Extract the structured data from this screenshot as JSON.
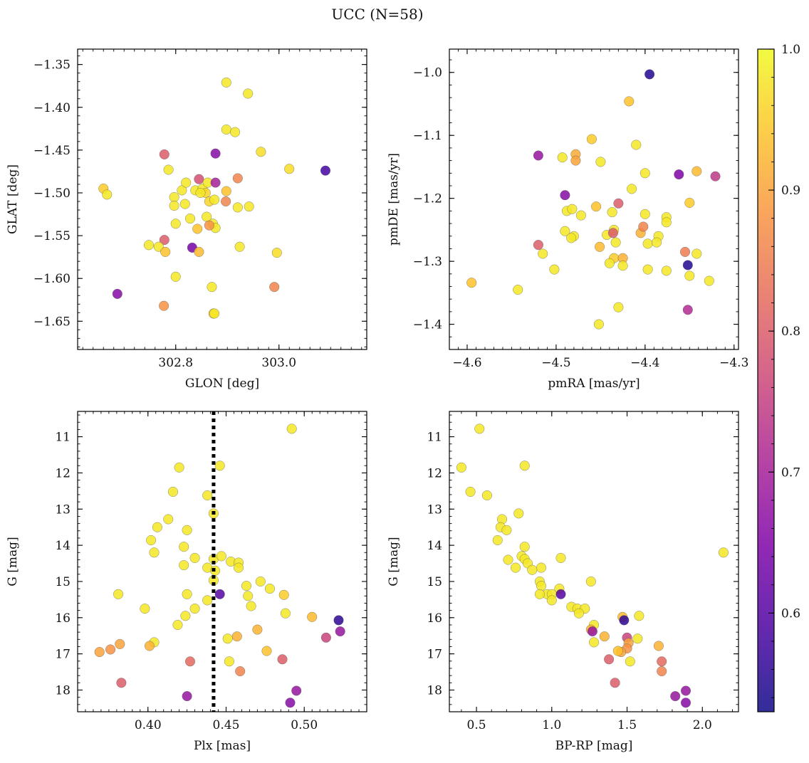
{
  "figure": {
    "title": "UCC (N=58)"
  },
  "colorbar": {
    "min": 0.53,
    "max": 1.0,
    "ticks": [
      0.6,
      0.7,
      0.8,
      0.9,
      1.0
    ],
    "tick_labels": [
      "0.6",
      "0.7",
      "0.8",
      "0.9",
      "1.0"
    ],
    "colormap": "plasma"
  },
  "chart_data": [
    {
      "type": "scatter",
      "xlabel": "GLON [deg]",
      "ylabel": "GLAT [deg]",
      "xlim": [
        302.61,
        303.17
      ],
      "ylim": [
        -1.683,
        -1.332
      ],
      "x_ticks": [
        302.8,
        303.0
      ],
      "x_tick_labels": [
        "302.8",
        "303.0"
      ],
      "y_ticks": [
        -1.35,
        -1.4,
        -1.45,
        -1.5,
        -1.55,
        -1.6,
        -1.65
      ],
      "y_tick_labels": [
        "−1.35",
        "−1.40",
        "−1.45",
        "−1.50",
        "−1.55",
        "−1.60",
        "−1.65"
      ],
      "points": [
        [
          302.898,
          -1.371,
          0.98
        ],
        [
          302.94,
          -1.384,
          0.98
        ],
        [
          302.898,
          -1.426,
          0.98
        ],
        [
          302.915,
          -1.429,
          0.98
        ],
        [
          302.965,
          -1.452,
          0.97
        ],
        [
          303.02,
          -1.472,
          0.97
        ],
        [
          303.09,
          -1.474,
          0.58
        ],
        [
          302.877,
          -1.454,
          0.66
        ],
        [
          302.778,
          -1.455,
          0.8
        ],
        [
          302.786,
          -1.473,
          0.98
        ],
        [
          302.66,
          -1.495,
          0.95
        ],
        [
          302.667,
          -1.502,
          0.98
        ],
        [
          302.812,
          -1.497,
          0.98
        ],
        [
          302.82,
          -1.488,
          0.98
        ],
        [
          302.838,
          -1.497,
          0.98
        ],
        [
          302.845,
          -1.484,
          0.78
        ],
        [
          302.852,
          -1.495,
          0.98
        ],
        [
          302.858,
          -1.5,
          0.96
        ],
        [
          302.862,
          -1.488,
          0.98
        ],
        [
          302.877,
          -1.488,
          0.7
        ],
        [
          302.898,
          -1.498,
          0.94
        ],
        [
          302.92,
          -1.483,
          0.86
        ],
        [
          302.797,
          -1.505,
          0.98
        ],
        [
          302.797,
          -1.515,
          0.98
        ],
        [
          302.818,
          -1.513,
          0.98
        ],
        [
          302.848,
          -1.5,
          0.98
        ],
        [
          302.865,
          -1.51,
          0.96
        ],
        [
          302.875,
          -1.508,
          0.98
        ],
        [
          302.897,
          -1.51,
          0.86
        ],
        [
          302.92,
          -1.517,
          0.98
        ],
        [
          302.942,
          -1.516,
          0.98
        ],
        [
          302.828,
          -1.53,
          0.98
        ],
        [
          302.86,
          -1.528,
          0.98
        ],
        [
          302.872,
          -1.536,
          0.98
        ],
        [
          302.877,
          -1.541,
          0.98
        ],
        [
          302.865,
          -1.538,
          0.88
        ],
        [
          302.842,
          -1.542,
          0.94
        ],
        [
          302.8,
          -1.536,
          0.98
        ],
        [
          302.778,
          -1.555,
          0.8
        ],
        [
          302.748,
          -1.561,
          0.98
        ],
        [
          302.767,
          -1.563,
          0.98
        ],
        [
          302.78,
          -1.569,
          0.94
        ],
        [
          302.832,
          -1.564,
          0.64
        ],
        [
          302.845,
          -1.569,
          0.93
        ],
        [
          302.924,
          -1.563,
          0.98
        ],
        [
          302.996,
          -1.57,
          0.97
        ],
        [
          302.8,
          -1.598,
          0.98
        ],
        [
          302.687,
          -1.618,
          0.66
        ],
        [
          302.777,
          -1.632,
          0.88
        ],
        [
          302.87,
          -1.61,
          0.98
        ],
        [
          302.873,
          -1.641,
          0.95
        ],
        [
          302.875,
          -1.641,
          0.98
        ],
        [
          302.991,
          -1.61,
          0.86
        ]
      ]
    },
    {
      "type": "scatter",
      "xlabel": "pmRA [mas/yr]",
      "ylabel": "pmDE [mas/yr]",
      "xlim": [
        -4.62,
        -4.295
      ],
      "ylim": [
        -1.44,
        -0.963
      ],
      "x_ticks": [
        -4.6,
        -4.5,
        -4.4,
        -4.3
      ],
      "x_tick_labels": [
        "−4.6",
        "−4.5",
        "−4.4",
        "−4.3"
      ],
      "y_ticks": [
        -1.0,
        -1.1,
        -1.2,
        -1.3,
        -1.4
      ],
      "y_tick_labels": [
        "−1.0",
        "−1.1",
        "−1.2",
        "−1.3",
        "−1.4"
      ],
      "points": [
        [
          -4.395,
          -1.003,
          0.55
        ],
        [
          -4.418,
          -1.046,
          0.94
        ],
        [
          -4.46,
          -1.106,
          0.95
        ],
        [
          -4.41,
          -1.115,
          0.98
        ],
        [
          -4.52,
          -1.132,
          0.68
        ],
        [
          -4.493,
          -1.135,
          0.98
        ],
        [
          -4.478,
          -1.13,
          0.91
        ],
        [
          -4.478,
          -1.14,
          0.9
        ],
        [
          -4.45,
          -1.142,
          0.98
        ],
        [
          -4.4,
          -1.16,
          0.98
        ],
        [
          -4.362,
          -1.162,
          0.65
        ],
        [
          -4.342,
          -1.157,
          0.93
        ],
        [
          -4.321,
          -1.165,
          0.74
        ],
        [
          -4.49,
          -1.195,
          0.66
        ],
        [
          -4.415,
          -1.185,
          0.98
        ],
        [
          -4.35,
          -1.207,
          0.95
        ],
        [
          -4.43,
          -1.208,
          0.8
        ],
        [
          -4.455,
          -1.213,
          0.94
        ],
        [
          -4.488,
          -1.22,
          0.98
        ],
        [
          -4.482,
          -1.217,
          0.98
        ],
        [
          -4.472,
          -1.227,
          0.98
        ],
        [
          -4.437,
          -1.222,
          0.98
        ],
        [
          -4.4,
          -1.225,
          0.98
        ],
        [
          -4.376,
          -1.23,
          0.98
        ],
        [
          -4.376,
          -1.238,
          0.98
        ],
        [
          -4.49,
          -1.252,
          0.98
        ],
        [
          -4.48,
          -1.26,
          0.98
        ],
        [
          -4.483,
          -1.263,
          0.98
        ],
        [
          -4.443,
          -1.258,
          0.98
        ],
        [
          -4.435,
          -1.25,
          0.98
        ],
        [
          -4.436,
          -1.255,
          0.8
        ],
        [
          -4.405,
          -1.255,
          0.92
        ],
        [
          -4.402,
          -1.245,
          0.86
        ],
        [
          -4.385,
          -1.26,
          0.98
        ],
        [
          -4.397,
          -1.272,
          0.98
        ],
        [
          -4.387,
          -1.27,
          0.98
        ],
        [
          -4.433,
          -1.27,
          0.98
        ],
        [
          -4.451,
          -1.277,
          0.93
        ],
        [
          -4.52,
          -1.274,
          0.8
        ],
        [
          -4.515,
          -1.288,
          0.98
        ],
        [
          -4.355,
          -1.285,
          0.85
        ],
        [
          -4.342,
          -1.288,
          0.98
        ],
        [
          -4.435,
          -1.295,
          0.95
        ],
        [
          -4.425,
          -1.295,
          0.92
        ],
        [
          -4.44,
          -1.303,
          0.98
        ],
        [
          -4.425,
          -1.307,
          0.98
        ],
        [
          -4.502,
          -1.313,
          0.98
        ],
        [
          -4.397,
          -1.313,
          0.98
        ],
        [
          -4.376,
          -1.315,
          0.98
        ],
        [
          -4.352,
          -1.306,
          0.55
        ],
        [
          -4.35,
          -1.323,
          0.98
        ],
        [
          -4.328,
          -1.331,
          0.98
        ],
        [
          -4.595,
          -1.334,
          0.94
        ],
        [
          -4.543,
          -1.345,
          0.98
        ],
        [
          -4.43,
          -1.373,
          0.98
        ],
        [
          -4.352,
          -1.377,
          0.72
        ],
        [
          -4.452,
          -1.4,
          0.98
        ]
      ]
    },
    {
      "type": "scatter",
      "xlabel": "Plx [mas]",
      "ylabel": "G [mag]",
      "xlim": [
        0.355,
        0.54
      ],
      "ylim": [
        18.6,
        10.3
      ],
      "x_ticks": [
        0.4,
        0.45,
        0.5
      ],
      "x_tick_labels": [
        "0.40",
        "0.45",
        "0.50"
      ],
      "y_ticks": [
        11,
        12,
        13,
        14,
        15,
        16,
        17,
        18
      ],
      "y_tick_labels": [
        "11",
        "12",
        "13",
        "14",
        "15",
        "16",
        "17",
        "18"
      ],
      "vline": 0.442,
      "points": [
        [
          0.492,
          10.78,
          0.98
        ],
        [
          0.42,
          11.85,
          0.98
        ],
        [
          0.446,
          11.8,
          0.98
        ],
        [
          0.416,
          12.52,
          0.98
        ],
        [
          0.438,
          12.62,
          0.98
        ],
        [
          0.442,
          13.12,
          0.98
        ],
        [
          0.413,
          13.28,
          0.98
        ],
        [
          0.406,
          13.5,
          0.98
        ],
        [
          0.425,
          13.58,
          0.98
        ],
        [
          0.402,
          13.86,
          0.98
        ],
        [
          0.423,
          14.04,
          0.98
        ],
        [
          0.404,
          14.2,
          0.98
        ],
        [
          0.43,
          14.35,
          0.98
        ],
        [
          0.442,
          14.38,
          0.98
        ],
        [
          0.447,
          14.3,
          0.98
        ],
        [
          0.453,
          14.45,
          0.98
        ],
        [
          0.458,
          14.48,
          0.98
        ],
        [
          0.458,
          14.62,
          0.98
        ],
        [
          0.423,
          14.55,
          0.98
        ],
        [
          0.438,
          14.62,
          0.98
        ],
        [
          0.443,
          14.7,
          0.98
        ],
        [
          0.442,
          14.97,
          0.98
        ],
        [
          0.472,
          15.0,
          0.98
        ],
        [
          0.463,
          15.12,
          0.98
        ],
        [
          0.478,
          15.2,
          0.98
        ],
        [
          0.381,
          15.35,
          0.98
        ],
        [
          0.425,
          15.35,
          0.98
        ],
        [
          0.446,
          15.35,
          0.6
        ],
        [
          0.464,
          15.4,
          0.98
        ],
        [
          0.487,
          15.37,
          0.95
        ],
        [
          0.438,
          15.52,
          0.98
        ],
        [
          0.43,
          15.75,
          0.98
        ],
        [
          0.466,
          15.68,
          0.98
        ],
        [
          0.398,
          15.75,
          0.98
        ],
        [
          0.424,
          15.95,
          0.98
        ],
        [
          0.488,
          15.88,
          0.98
        ],
        [
          0.505,
          15.98,
          0.93
        ],
        [
          0.522,
          16.07,
          0.56
        ],
        [
          0.419,
          16.2,
          0.98
        ],
        [
          0.47,
          16.33,
          0.92
        ],
        [
          0.457,
          16.52,
          0.92
        ],
        [
          0.451,
          16.58,
          0.98
        ],
        [
          0.523,
          16.38,
          0.68
        ],
        [
          0.514,
          16.55,
          0.76
        ],
        [
          0.404,
          16.68,
          0.98
        ],
        [
          0.401,
          16.78,
          0.92
        ],
        [
          0.382,
          16.73,
          0.9
        ],
        [
          0.376,
          16.88,
          0.88
        ],
        [
          0.369,
          16.95,
          0.9
        ],
        [
          0.476,
          16.92,
          0.94
        ],
        [
          0.486,
          17.15,
          0.8
        ],
        [
          0.427,
          17.21,
          0.82
        ],
        [
          0.452,
          17.21,
          0.98
        ],
        [
          0.459,
          17.48,
          0.86
        ],
        [
          0.383,
          17.8,
          0.8
        ],
        [
          0.495,
          18.02,
          0.68
        ],
        [
          0.425,
          18.17,
          0.68
        ],
        [
          0.491,
          18.35,
          0.66
        ]
      ]
    },
    {
      "type": "scatter",
      "xlabel": "BP-RP [mag]",
      "ylabel": "G [mag]",
      "xlim": [
        0.32,
        2.24
      ],
      "ylim": [
        18.6,
        10.3
      ],
      "x_ticks": [
        0.5,
        1.0,
        1.5,
        2.0
      ],
      "x_tick_labels": [
        "0.5",
        "1.0",
        "1.5",
        "2.0"
      ],
      "y_ticks": [
        11,
        12,
        13,
        14,
        15,
        16,
        17,
        18
      ],
      "y_tick_labels": [
        "11",
        "12",
        "13",
        "14",
        "15",
        "16",
        "17",
        "18"
      ],
      "points": [
        [
          0.52,
          10.78,
          0.98
        ],
        [
          0.4,
          11.85,
          0.98
        ],
        [
          0.82,
          11.8,
          0.98
        ],
        [
          0.46,
          12.52,
          0.98
        ],
        [
          0.57,
          12.62,
          0.98
        ],
        [
          0.78,
          13.12,
          0.98
        ],
        [
          0.67,
          13.28,
          0.98
        ],
        [
          0.66,
          13.5,
          0.98
        ],
        [
          0.7,
          13.58,
          0.98
        ],
        [
          0.64,
          13.86,
          0.98
        ],
        [
          0.82,
          14.04,
          0.98
        ],
        [
          2.14,
          14.2,
          0.98
        ],
        [
          0.71,
          14.4,
          0.98
        ],
        [
          0.8,
          14.3,
          0.98
        ],
        [
          0.82,
          14.38,
          0.98
        ],
        [
          1.06,
          14.35,
          0.98
        ],
        [
          0.84,
          14.5,
          0.98
        ],
        [
          0.76,
          14.62,
          0.98
        ],
        [
          0.93,
          14.62,
          0.98
        ],
        [
          0.87,
          14.68,
          0.98
        ],
        [
          0.92,
          15.0,
          0.98
        ],
        [
          1.26,
          15.0,
          0.98
        ],
        [
          0.93,
          15.12,
          0.98
        ],
        [
          1.05,
          15.2,
          0.98
        ],
        [
          0.97,
          15.35,
          0.98
        ],
        [
          1.0,
          15.35,
          0.98
        ],
        [
          0.92,
          15.35,
          0.98
        ],
        [
          1.06,
          15.35,
          0.6
        ],
        [
          1.0,
          15.52,
          0.98
        ],
        [
          1.13,
          15.7,
          0.98
        ],
        [
          1.17,
          15.75,
          0.98
        ],
        [
          1.22,
          15.75,
          0.98
        ],
        [
          1.18,
          15.88,
          0.98
        ],
        [
          1.58,
          15.95,
          0.98
        ],
        [
          1.47,
          15.98,
          0.93
        ],
        [
          1.48,
          16.07,
          0.56
        ],
        [
          1.28,
          16.2,
          0.98
        ],
        [
          1.26,
          16.33,
          0.92
        ],
        [
          1.27,
          16.38,
          0.68
        ],
        [
          1.35,
          16.52,
          0.92
        ],
        [
          1.5,
          16.55,
          0.76
        ],
        [
          1.28,
          16.68,
          0.98
        ],
        [
          1.57,
          16.58,
          0.98
        ],
        [
          1.51,
          16.7,
          0.9
        ],
        [
          1.71,
          16.78,
          0.92
        ],
        [
          1.5,
          16.85,
          0.88
        ],
        [
          1.46,
          16.95,
          0.9
        ],
        [
          1.44,
          16.92,
          0.94
        ],
        [
          1.38,
          17.15,
          0.8
        ],
        [
          1.52,
          17.21,
          0.98
        ],
        [
          1.73,
          17.21,
          0.82
        ],
        [
          1.73,
          17.48,
          0.86
        ],
        [
          1.42,
          17.8,
          0.8
        ],
        [
          1.89,
          18.02,
          0.68
        ],
        [
          1.82,
          18.17,
          0.68
        ],
        [
          1.89,
          18.35,
          0.66
        ]
      ]
    }
  ]
}
